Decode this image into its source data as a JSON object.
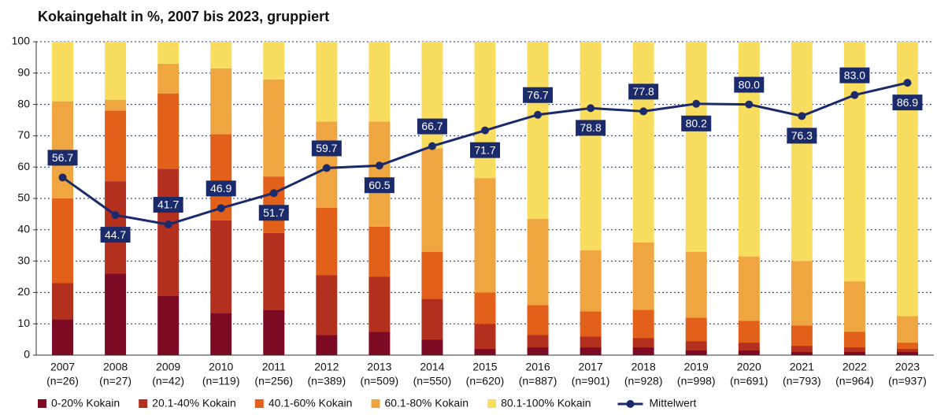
{
  "chart_data": {
    "type": "bar",
    "stacked": true,
    "title": "Kokaingehalt in %, 2007 bis 2023, gruppiert",
    "categories": [
      "2007",
      "2008",
      "2009",
      "2010",
      "2011",
      "2012",
      "2013",
      "2014",
      "2015",
      "2016",
      "2017",
      "2018",
      "2019",
      "2020",
      "2021",
      "2022",
      "2023"
    ],
    "sample_sizes": [
      "(n=26)",
      "(n=27)",
      "(n=42)",
      "(n=119)",
      "(n=256)",
      "(n=389)",
      "(n=509)",
      "(n=550)",
      "(n=620)",
      "(n=887)",
      "(n=901)",
      "(n=928)",
      "(n=998)",
      "(n=691)",
      "(n=793)",
      "(n=964)",
      "(n=937)"
    ],
    "series": [
      {
        "name": "0-20% Kokain",
        "color": "#7b0a22",
        "values": [
          11.5,
          26,
          19,
          13.5,
          14.5,
          6.5,
          7.5,
          5,
          2,
          2.5,
          2.5,
          2.5,
          1.5,
          1.5,
          1,
          1,
          1
        ]
      },
      {
        "name": "20.1-40% Kokain",
        "color": "#b3301f",
        "values": [
          11.5,
          29.5,
          40.5,
          29.5,
          24.5,
          19,
          17.5,
          13,
          8,
          4,
          3.5,
          3,
          3,
          2.5,
          2,
          1.5,
          1
        ]
      },
      {
        "name": "40.1-60% Kokain",
        "color": "#e2601a",
        "values": [
          27,
          22.5,
          24,
          27.5,
          18,
          21.5,
          16,
          15,
          10,
          9.5,
          8,
          9,
          7.5,
          7,
          6.5,
          5,
          2
        ]
      },
      {
        "name": "60.1-80% Kokain",
        "color": "#f0a640",
        "values": [
          31,
          3.5,
          9.5,
          21,
          31,
          27.5,
          33.5,
          33,
          36.5,
          27.5,
          19.5,
          21.5,
          21,
          20.5,
          20.5,
          16,
          8.5
        ]
      },
      {
        "name": "80.1-100% Kokain",
        "color": "#f9dd5e",
        "values": [
          19,
          18.5,
          7,
          8.5,
          12,
          25.5,
          25.5,
          34,
          43.5,
          56.5,
          66.5,
          64,
          67,
          68.5,
          70,
          76.5,
          87.5
        ]
      }
    ],
    "line": {
      "name": "Mittelwert",
      "color": "#1b2a6b",
      "values": [
        56.7,
        44.7,
        41.7,
        46.9,
        51.7,
        59.7,
        60.5,
        66.7,
        71.7,
        76.7,
        78.8,
        77.8,
        80.2,
        80.0,
        76.3,
        83.0,
        86.9
      ],
      "value_labels": [
        "56.7",
        "44.7",
        "41.7",
        "46.9",
        "51.7",
        "59.7",
        "60.5",
        "66.7",
        "71.7",
        "76.7",
        "78.8",
        "77.8",
        "80.2",
        "80.0",
        "76.3",
        "83.0",
        "86.9"
      ]
    },
    "ylim": [
      0,
      100
    ],
    "yticks": [
      0,
      10,
      20,
      30,
      40,
      50,
      60,
      70,
      80,
      90,
      100
    ],
    "grid": true
  }
}
